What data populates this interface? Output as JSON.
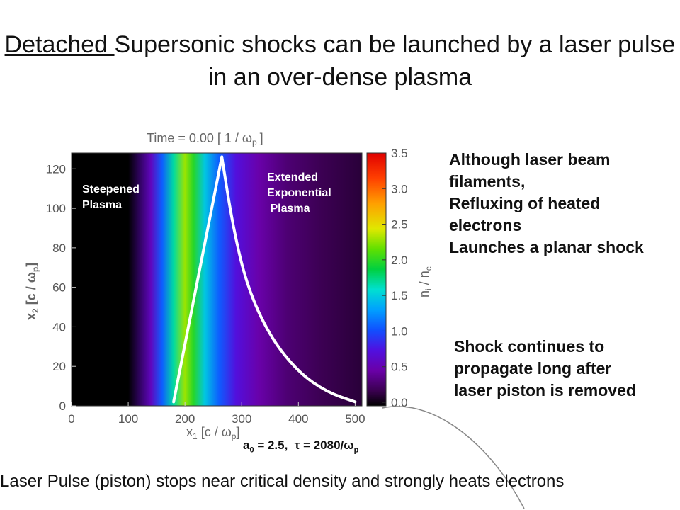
{
  "title": {
    "underlined": "Detached ",
    "rest": "Supersonic shocks can be launched by a laser pulse in an over-dense plasma"
  },
  "chart_data": {
    "type": "heatmap",
    "header": "Time =   0.00 [ 1 / ω",
    "header_sub": "p",
    "header_tail": "]",
    "xlabel": "x",
    "xlabel_sub": "1",
    "xlabel_tail": " [c / ω",
    "xlabel_tail_sub": "p",
    "xlabel_close": "]",
    "ylabel": "x",
    "ylabel_sub": "2",
    "ylabel_tail": " [c / ω",
    "ylabel_tail_sub": "p",
    "ylabel_close": "]",
    "xlim": [
      0,
      512
    ],
    "ylim": [
      0,
      128
    ],
    "x_ticks": [
      0,
      100,
      200,
      300,
      400,
      500
    ],
    "y_ticks": [
      0,
      20,
      40,
      60,
      80,
      100,
      120
    ],
    "colorbar_label": "n",
    "colorbar_label_sub": "i",
    "colorbar_label_tail": " / n",
    "colorbar_label_tail_sub": "c",
    "colorbar_ticks": [
      "0.0",
      "0.5",
      "1.0",
      "1.5",
      "2.0",
      "2.5",
      "3.0",
      "3.5"
    ],
    "colorbar_range": [
      0,
      3.5
    ],
    "density_profile": {
      "description_free": true,
      "points": [
        {
          "x": 0,
          "value": 0
        },
        {
          "x": 100,
          "value": 0
        },
        {
          "x": 140,
          "value": 0.6
        },
        {
          "x": 160,
          "value": 1.1
        },
        {
          "x": 180,
          "value": 1.7
        },
        {
          "x": 200,
          "value": 2.3
        },
        {
          "x": 215,
          "value": 2.0
        },
        {
          "x": 235,
          "value": 1.5
        },
        {
          "x": 260,
          "value": 1.1
        },
        {
          "x": 290,
          "value": 0.75
        },
        {
          "x": 330,
          "value": 0.5
        },
        {
          "x": 380,
          "value": 0.32
        },
        {
          "x": 440,
          "value": 0.22
        },
        {
          "x": 512,
          "value": 0.15
        }
      ]
    },
    "overlay_curve": {
      "rise": [
        [
          180,
          2
        ],
        [
          265,
          126
        ]
      ],
      "decay": [
        [
          265,
          126
        ],
        [
          285,
          90
        ],
        [
          310,
          60
        ],
        [
          350,
          35
        ],
        [
          400,
          17
        ],
        [
          450,
          7
        ],
        [
          500,
          2
        ]
      ]
    },
    "annotations": [
      {
        "text_lines": [
          "Steepened",
          "Plasma"
        ]
      },
      {
        "text_lines": [
          "Extended",
          "Exponential",
          " Plasma"
        ]
      }
    ]
  },
  "note1_lines": [
    "Although laser beam",
    "filaments,",
    "Refluxing of heated",
    "electrons",
    "Launches a planar shock"
  ],
  "note2_lines": [
    "Shock continues to",
    "propagate long after",
    "laser piston is removed"
  ],
  "params": {
    "a": "a",
    "a_sub": "0",
    "rest": " = 2.5,  τ = 2080/ω",
    "rest_sub": "p"
  },
  "bottom_text": "Laser Pulse (piston) stops near critical density and strongly heats electrons",
  "colors": {
    "curve": "#ffffff",
    "text": "#111111"
  }
}
